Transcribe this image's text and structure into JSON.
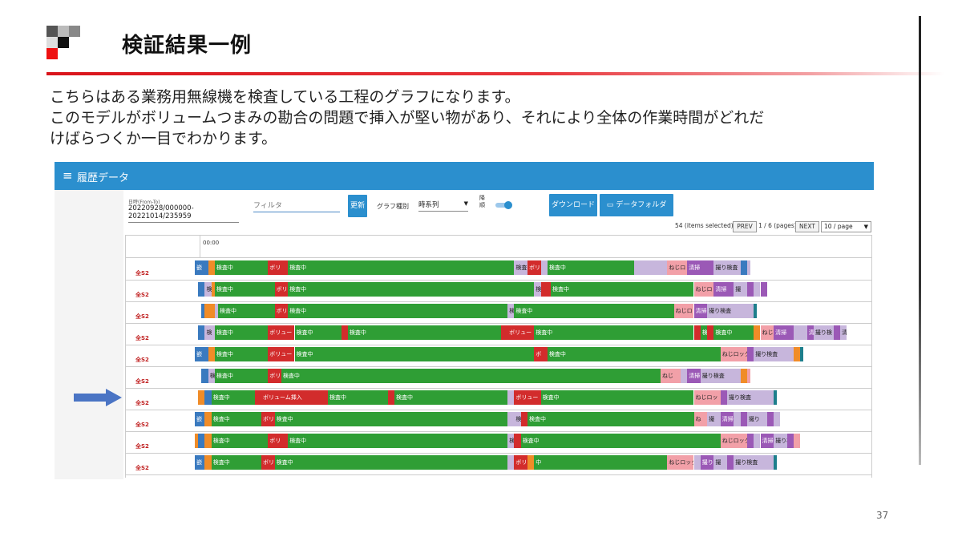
{
  "slide": {
    "title": "検証結果一例",
    "lines": [
      "こちらはある業務用無線機を検査している工程のグラフになります。",
      "このモデルがボリュームつまみの勘合の問題で挿入が堅い物があり、それにより全体の作業時間がどれだ",
      "けばらつくか一目でわかります。"
    ],
    "page_number": "37",
    "colors": {
      "accent_red": "#d9141b",
      "arrow_blue": "#4a74c4"
    }
  },
  "app": {
    "title": "履歴データ",
    "menu_icon": "hamburger-icon",
    "date_range_label": "日時(From-To)",
    "date_range_value": "20220928/000000-20221014/235959",
    "filter_placeholder": "フィルタ",
    "update_button": "更新",
    "graph_type_label": "グラフ種別",
    "graph_type_value": "時系列",
    "vertical_label": "降順",
    "toggle_on": true,
    "download_button": "ダウンロード",
    "data_folder_button": "データフォルダ",
    "folder_icon": "folder-icon",
    "items_selected": "54 (items selected)-",
    "prev_button": "PREV",
    "page_info": "1 / 6 (pages)",
    "next_button": "NEXT",
    "per_page": "10 / page",
    "time_start": "00:00",
    "colors": {
      "header": "#2b8fce",
      "inspect": "#2f9e35",
      "volume": "#d22c2c",
      "screw": "#f2a0a8",
      "clean": "#9b59b6",
      "photo": "#c7b6dc",
      "teal": "#1e7f8c",
      "blue": "#3a7abf",
      "orange": "#f08c28"
    }
  },
  "rows": [
    {
      "label": "全S2",
      "segments": [
        {
          "s": 0,
          "e": 2,
          "c": "blue",
          "t": "嵌"
        },
        {
          "s": 2,
          "e": 3,
          "c": "orange",
          "t": ""
        },
        {
          "s": 3,
          "e": 11,
          "c": "inspect",
          "t": "検査中"
        },
        {
          "s": 11,
          "e": 14,
          "c": "volume",
          "t": "ボリ"
        },
        {
          "s": 14,
          "e": 48,
          "c": "inspect",
          "t": "検査中"
        },
        {
          "s": 48,
          "e": 50,
          "c": "photo",
          "t": "検査"
        },
        {
          "s": 50,
          "e": 52,
          "c": "volume",
          "t": "ボリ"
        },
        {
          "s": 52,
          "e": 53,
          "c": "photo",
          "t": ""
        },
        {
          "s": 53,
          "e": 66,
          "c": "inspect",
          "t": "検査中"
        },
        {
          "s": 66,
          "e": 71,
          "c": "photo",
          "t": ""
        },
        {
          "s": 71,
          "e": 74,
          "c": "screw",
          "t": "ねじロ"
        },
        {
          "s": 74,
          "e": 78,
          "c": "clean",
          "t": "清掃"
        },
        {
          "s": 78,
          "e": 82,
          "c": "photo",
          "t": "撮り検査"
        },
        {
          "s": 82,
          "e": 83,
          "c": "blue",
          "t": ""
        },
        {
          "s": 83,
          "e": 83.5,
          "c": "photo",
          "t": ""
        }
      ]
    },
    {
      "label": "全S2",
      "segments": [
        {
          "s": 0.5,
          "e": 1.5,
          "c": "blue",
          "t": ""
        },
        {
          "s": 1.5,
          "e": 2.5,
          "c": "photo",
          "t": "検"
        },
        {
          "s": 2.5,
          "e": 3,
          "c": "orange",
          "t": ""
        },
        {
          "s": 3,
          "e": 12,
          "c": "inspect",
          "t": "検査中"
        },
        {
          "s": 12,
          "e": 14,
          "c": "volume",
          "t": "ボリ"
        },
        {
          "s": 14,
          "e": 51,
          "c": "inspect",
          "t": "検査中"
        },
        {
          "s": 51,
          "e": 52,
          "c": "photo",
          "t": "検"
        },
        {
          "s": 52,
          "e": 53.5,
          "c": "volume",
          "t": ""
        },
        {
          "s": 53.5,
          "e": 75,
          "c": "inspect",
          "t": "検査中"
        },
        {
          "s": 75,
          "e": 78,
          "c": "screw",
          "t": "ねじロ"
        },
        {
          "s": 78,
          "e": 81,
          "c": "clean",
          "t": "清掃"
        },
        {
          "s": 81,
          "e": 83,
          "c": "photo",
          "t": "撮"
        },
        {
          "s": 83,
          "e": 84,
          "c": "clean",
          "t": ""
        },
        {
          "s": 84,
          "e": 85,
          "c": "photo",
          "t": ""
        },
        {
          "s": 85,
          "e": 86,
          "c": "clean",
          "t": ""
        }
      ]
    },
    {
      "label": "全S2",
      "segments": [
        {
          "s": 1,
          "e": 1.5,
          "c": "blue",
          "t": ""
        },
        {
          "s": 1.5,
          "e": 3,
          "c": "orange",
          "t": ""
        },
        {
          "s": 3,
          "e": 3.5,
          "c": "photo",
          "t": ""
        },
        {
          "s": 3.5,
          "e": 12,
          "c": "inspect",
          "t": "検査中"
        },
        {
          "s": 12,
          "e": 14,
          "c": "volume",
          "t": "ボリ"
        },
        {
          "s": 14,
          "e": 47,
          "c": "inspect",
          "t": "検査中"
        },
        {
          "s": 47,
          "e": 48,
          "c": "photo",
          "t": "検"
        },
        {
          "s": 48,
          "e": 72,
          "c": "inspect",
          "t": "検査中"
        },
        {
          "s": 72,
          "e": 75,
          "c": "screw",
          "t": "ねじロ"
        },
        {
          "s": 75,
          "e": 77,
          "c": "clean",
          "t": "清掃"
        },
        {
          "s": 77,
          "e": 84,
          "c": "photo",
          "t": "撮り検査"
        },
        {
          "s": 84,
          "e": 84.5,
          "c": "teal",
          "t": ""
        }
      ]
    },
    {
      "label": "全S2",
      "segments": [
        {
          "s": 0.5,
          "e": 1.5,
          "c": "blue",
          "t": ""
        },
        {
          "s": 1.5,
          "e": 3,
          "c": "photo",
          "t": "検"
        },
        {
          "s": 3,
          "e": 11,
          "c": "inspect",
          "t": "検査中"
        },
        {
          "s": 11,
          "e": 15,
          "c": "volume",
          "t": "ボリュー"
        },
        {
          "s": 15,
          "e": 22,
          "c": "inspect",
          "t": "検査中"
        },
        {
          "s": 22,
          "e": 23,
          "c": "volume",
          "t": ""
        },
        {
          "s": 23,
          "e": 46,
          "c": "inspect",
          "t": "検査中"
        },
        {
          "s": 46,
          "e": 47,
          "c": "volume",
          "t": ""
        },
        {
          "s": 47,
          "e": 51,
          "c": "volume",
          "t": "ボリュー"
        },
        {
          "s": 51,
          "e": 75,
          "c": "inspect",
          "t": "検査中"
        },
        {
          "s": 75,
          "e": 76,
          "c": "volume",
          "t": ""
        },
        {
          "s": 76,
          "e": 77,
          "c": "inspect",
          "t": "検"
        },
        {
          "s": 77,
          "e": 78,
          "c": "volume",
          "t": ""
        },
        {
          "s": 78,
          "e": 84,
          "c": "inspect",
          "t": "検査中"
        },
        {
          "s": 84,
          "e": 85,
          "c": "orange",
          "t": ""
        },
        {
          "s": 85,
          "e": 87,
          "c": "screw",
          "t": "ねじロ"
        },
        {
          "s": 87,
          "e": 90,
          "c": "clean",
          "t": "清掃"
        },
        {
          "s": 90,
          "e": 92,
          "c": "photo",
          "t": ""
        },
        {
          "s": 92,
          "e": 93,
          "c": "clean",
          "t": "清"
        },
        {
          "s": 93,
          "e": 96,
          "c": "photo",
          "t": "撮り検"
        },
        {
          "s": 96,
          "e": 97,
          "c": "clean",
          "t": ""
        },
        {
          "s": 97,
          "e": 98,
          "c": "photo",
          "t": "清"
        }
      ]
    },
    {
      "label": "全S2",
      "segments": [
        {
          "s": 0,
          "e": 2,
          "c": "blue",
          "t": "嵌"
        },
        {
          "s": 2,
          "e": 3,
          "c": "orange",
          "t": ""
        },
        {
          "s": 3,
          "e": 11,
          "c": "inspect",
          "t": "検査中"
        },
        {
          "s": 11,
          "e": 15,
          "c": "volume",
          "t": "ボリュー"
        },
        {
          "s": 15,
          "e": 51,
          "c": "inspect",
          "t": "検査中"
        },
        {
          "s": 51,
          "e": 53,
          "c": "volume",
          "t": "ボ"
        },
        {
          "s": 53,
          "e": 79,
          "c": "inspect",
          "t": "検査中"
        },
        {
          "s": 79,
          "e": 83,
          "c": "screw",
          "t": "ねじロック"
        },
        {
          "s": 83,
          "e": 84,
          "c": "clean",
          "t": ""
        },
        {
          "s": 84,
          "e": 90,
          "c": "photo",
          "t": "撮り検査"
        },
        {
          "s": 90,
          "e": 91,
          "c": "orange",
          "t": ""
        },
        {
          "s": 91,
          "e": 91.5,
          "c": "teal",
          "t": ""
        }
      ]
    },
    {
      "label": "全S2",
      "segments": [
        {
          "s": 1,
          "e": 2,
          "c": "blue",
          "t": ""
        },
        {
          "s": 2,
          "e": 3,
          "c": "photo",
          "t": "検"
        },
        {
          "s": 3,
          "e": 11,
          "c": "inspect",
          "t": "検査中"
        },
        {
          "s": 11,
          "e": 13,
          "c": "volume",
          "t": "ボリ"
        },
        {
          "s": 13,
          "e": 70,
          "c": "inspect",
          "t": "検査中"
        },
        {
          "s": 70,
          "e": 73,
          "c": "screw",
          "t": "ねじ"
        },
        {
          "s": 73,
          "e": 74,
          "c": "photo",
          "t": ""
        },
        {
          "s": 74,
          "e": 76,
          "c": "clean",
          "t": "清掃"
        },
        {
          "s": 76,
          "e": 82,
          "c": "photo",
          "t": "撮り検査"
        },
        {
          "s": 82,
          "e": 83,
          "c": "orange",
          "t": ""
        },
        {
          "s": 83,
          "e": 83.5,
          "c": "screw",
          "t": ""
        }
      ]
    },
    {
      "label": "全S2",
      "segments": [
        {
          "s": 0.5,
          "e": 1.5,
          "c": "orange",
          "t": ""
        },
        {
          "s": 1.5,
          "e": 2.5,
          "c": "blue",
          "t": ""
        },
        {
          "s": 2.5,
          "e": 9,
          "c": "inspect",
          "t": "検査中"
        },
        {
          "s": 9,
          "e": 10,
          "c": "volume",
          "t": ""
        },
        {
          "s": 10,
          "e": 20,
          "c": "volume",
          "t": "ボリューム挿入"
        },
        {
          "s": 20,
          "e": 29,
          "c": "inspect",
          "t": "検査中"
        },
        {
          "s": 29,
          "e": 30,
          "c": "volume",
          "t": ""
        },
        {
          "s": 30,
          "e": 47,
          "c": "inspect",
          "t": "検査中"
        },
        {
          "s": 47,
          "e": 48,
          "c": "photo",
          "t": ""
        },
        {
          "s": 48,
          "e": 52,
          "c": "volume",
          "t": "ボリュー"
        },
        {
          "s": 52,
          "e": 75,
          "c": "inspect",
          "t": "検査中"
        },
        {
          "s": 75,
          "e": 79,
          "c": "screw",
          "t": "ねじロッ"
        },
        {
          "s": 79,
          "e": 80,
          "c": "clean",
          "t": ""
        },
        {
          "s": 80,
          "e": 87,
          "c": "photo",
          "t": "撮り検査"
        },
        {
          "s": 87,
          "e": 87.5,
          "c": "teal",
          "t": ""
        }
      ]
    },
    {
      "label": "全S2",
      "segments": [
        {
          "s": 0,
          "e": 1.5,
          "c": "blue",
          "t": "嵌"
        },
        {
          "s": 1.5,
          "e": 2.5,
          "c": "orange",
          "t": ""
        },
        {
          "s": 2.5,
          "e": 10,
          "c": "inspect",
          "t": "検査中"
        },
        {
          "s": 10,
          "e": 12,
          "c": "volume",
          "t": "ボリ"
        },
        {
          "s": 12,
          "e": 47,
          "c": "inspect",
          "t": "検査中"
        },
        {
          "s": 47,
          "e": 48,
          "c": "photo",
          "t": ""
        },
        {
          "s": 48,
          "e": 49,
          "c": "photo",
          "t": "検"
        },
        {
          "s": 49,
          "e": 50,
          "c": "volume",
          "t": ""
        },
        {
          "s": 50,
          "e": 75,
          "c": "inspect",
          "t": "検査中"
        },
        {
          "s": 75,
          "e": 77,
          "c": "screw",
          "t": "ね"
        },
        {
          "s": 77,
          "e": 79,
          "c": "photo",
          "t": "撮"
        },
        {
          "s": 79,
          "e": 81,
          "c": "clean",
          "t": "清掃"
        },
        {
          "s": 81,
          "e": 82,
          "c": "photo",
          "t": ""
        },
        {
          "s": 82,
          "e": 83,
          "c": "clean",
          "t": ""
        },
        {
          "s": 83,
          "e": 86,
          "c": "photo",
          "t": "撮り"
        },
        {
          "s": 86,
          "e": 87,
          "c": "clean",
          "t": ""
        },
        {
          "s": 87,
          "e": 88,
          "c": "photo",
          "t": ""
        }
      ]
    },
    {
      "label": "全S2",
      "segments": [
        {
          "s": 0,
          "e": 0.5,
          "c": "orange",
          "t": ""
        },
        {
          "s": 0.5,
          "e": 1.5,
          "c": "blue",
          "t": ""
        },
        {
          "s": 1.5,
          "e": 2.5,
          "c": "orange",
          "t": ""
        },
        {
          "s": 2.5,
          "e": 11,
          "c": "inspect",
          "t": "検査中"
        },
        {
          "s": 11,
          "e": 14,
          "c": "volume",
          "t": "ボリ"
        },
        {
          "s": 14,
          "e": 47,
          "c": "inspect",
          "t": "検査中"
        },
        {
          "s": 47,
          "e": 48,
          "c": "photo",
          "t": "検"
        },
        {
          "s": 48,
          "e": 49,
          "c": "volume",
          "t": ""
        },
        {
          "s": 49,
          "e": 79,
          "c": "inspect",
          "t": "検査中"
        },
        {
          "s": 79,
          "e": 83,
          "c": "screw",
          "t": "ねじロック"
        },
        {
          "s": 83,
          "e": 84,
          "c": "clean",
          "t": ""
        },
        {
          "s": 84,
          "e": 85,
          "c": "photo",
          "t": ""
        },
        {
          "s": 85,
          "e": 87,
          "c": "clean",
          "t": "清掃"
        },
        {
          "s": 87,
          "e": 89,
          "c": "photo",
          "t": "撮り検"
        },
        {
          "s": 89,
          "e": 90,
          "c": "clean",
          "t": ""
        },
        {
          "s": 90,
          "e": 91,
          "c": "screw",
          "t": ""
        }
      ]
    },
    {
      "label": "全S2",
      "segments": [
        {
          "s": 0,
          "e": 1.5,
          "c": "blue",
          "t": "嵌"
        },
        {
          "s": 1.5,
          "e": 2.5,
          "c": "orange",
          "t": ""
        },
        {
          "s": 2.5,
          "e": 10,
          "c": "inspect",
          "t": "検査中"
        },
        {
          "s": 10,
          "e": 12,
          "c": "volume",
          "t": "ボリ"
        },
        {
          "s": 12,
          "e": 47,
          "c": "inspect",
          "t": "検査中"
        },
        {
          "s": 47,
          "e": 48,
          "c": "photo",
          "t": ""
        },
        {
          "s": 48,
          "e": 50,
          "c": "volume",
          "t": "ボリュー"
        },
        {
          "s": 50,
          "e": 51,
          "c": "orange",
          "t": ""
        },
        {
          "s": 51,
          "e": 52,
          "c": "inspect",
          "t": "中"
        },
        {
          "s": 52,
          "e": 71,
          "c": "inspect",
          "t": ""
        },
        {
          "s": 71,
          "e": 75,
          "c": "screw",
          "t": "ねじロック"
        },
        {
          "s": 75,
          "e": 76,
          "c": "photo",
          "t": ""
        },
        {
          "s": 76,
          "e": 78,
          "c": "clean",
          "t": "撮り"
        },
        {
          "s": 78,
          "e": 80,
          "c": "photo",
          "t": "撮"
        },
        {
          "s": 80,
          "e": 81,
          "c": "clean",
          "t": ""
        },
        {
          "s": 81,
          "e": 87,
          "c": "photo",
          "t": "撮り検査"
        },
        {
          "s": 87,
          "e": 87.5,
          "c": "teal",
          "t": ""
        }
      ]
    }
  ]
}
